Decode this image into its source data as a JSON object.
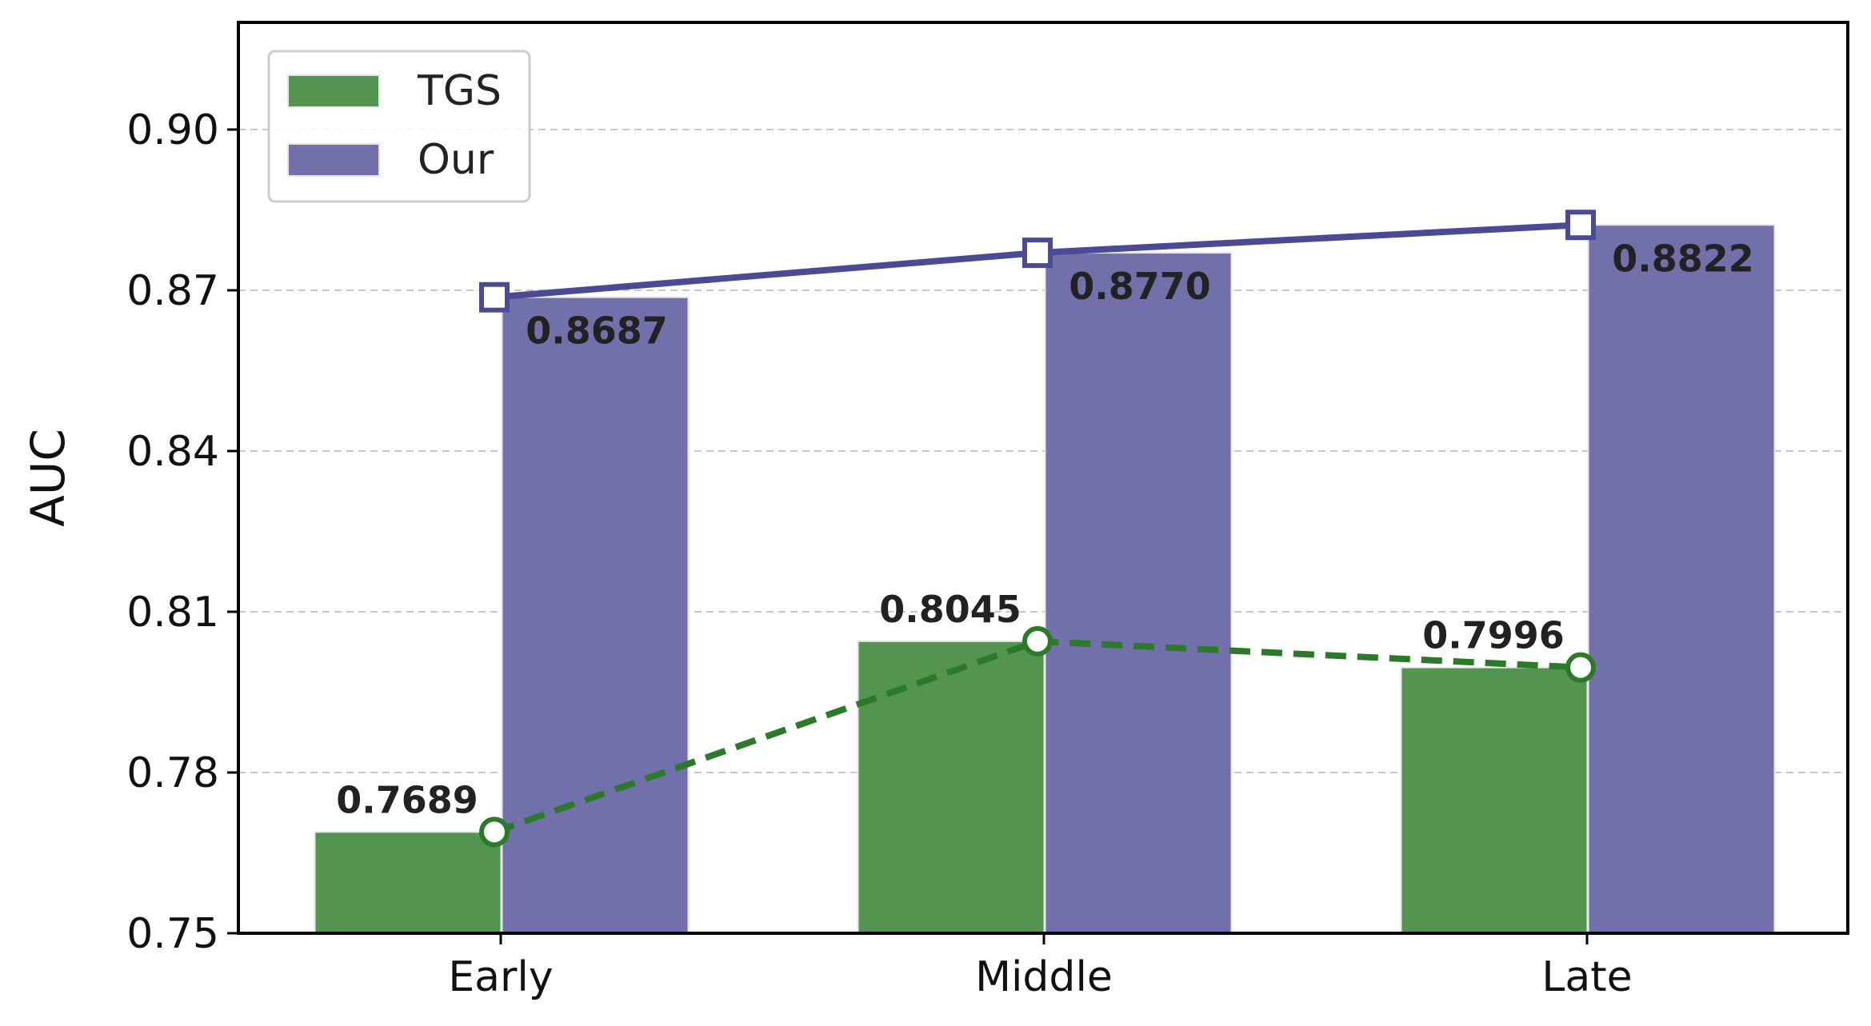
{
  "chart_data": {
    "type": "bar",
    "categories": [
      "Early",
      "Middle",
      "Late"
    ],
    "series": [
      {
        "name": "TGS",
        "values": [
          0.7689,
          0.8045,
          0.7996
        ],
        "color": "#529450",
        "line_color": "#2a7a2a",
        "line_style": "dashed",
        "marker": "circle"
      },
      {
        "name": "Our",
        "values": [
          0.8687,
          0.877,
          0.8822
        ],
        "color": "#7270aa",
        "line_color": "#4b4a94",
        "line_style": "solid",
        "marker": "square"
      }
    ],
    "data_labels": [
      [
        "0.7689",
        "0.8045",
        "0.7996"
      ],
      [
        "0.8687",
        "0.8770",
        "0.8822"
      ]
    ],
    "ylabel": "AUC",
    "xlabel": "",
    "ylim": [
      0.75,
      0.92
    ],
    "yticks": [
      0.75,
      0.78,
      0.81,
      0.84,
      0.87,
      0.9
    ],
    "ytick_labels": [
      "0.75",
      "0.78",
      "0.81",
      "0.84",
      "0.87",
      "0.90"
    ],
    "grid": "horizontal dashed",
    "legend_position": "top-left"
  }
}
